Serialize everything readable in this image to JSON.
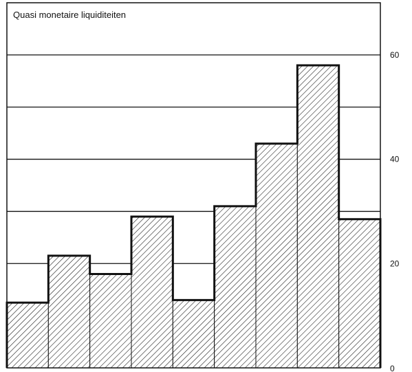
{
  "chart_data": {
    "type": "bar",
    "title": "Quasi monetaire liquiditeiten",
    "xlabel": "",
    "ylabel": "",
    "categories": [
      "",
      "",
      "",
      "",
      "",
      "",
      "",
      "",
      ""
    ],
    "values": [
      12.5,
      21.5,
      18,
      29,
      13,
      31,
      43,
      58,
      28.5
    ],
    "ylim": [
      0,
      70
    ],
    "y_ticks": [
      0,
      20,
      40,
      60
    ],
    "y_tick_labels": [
      "0",
      "20",
      "40",
      "60"
    ],
    "gridlines": [
      10,
      20,
      30,
      40,
      50,
      60
    ],
    "grid": true,
    "axis_position": "right",
    "fill_pattern": "diagonal-hatch",
    "colors": {
      "line": "#111111",
      "hatch": "#111111",
      "background": "#ffffff"
    }
  }
}
